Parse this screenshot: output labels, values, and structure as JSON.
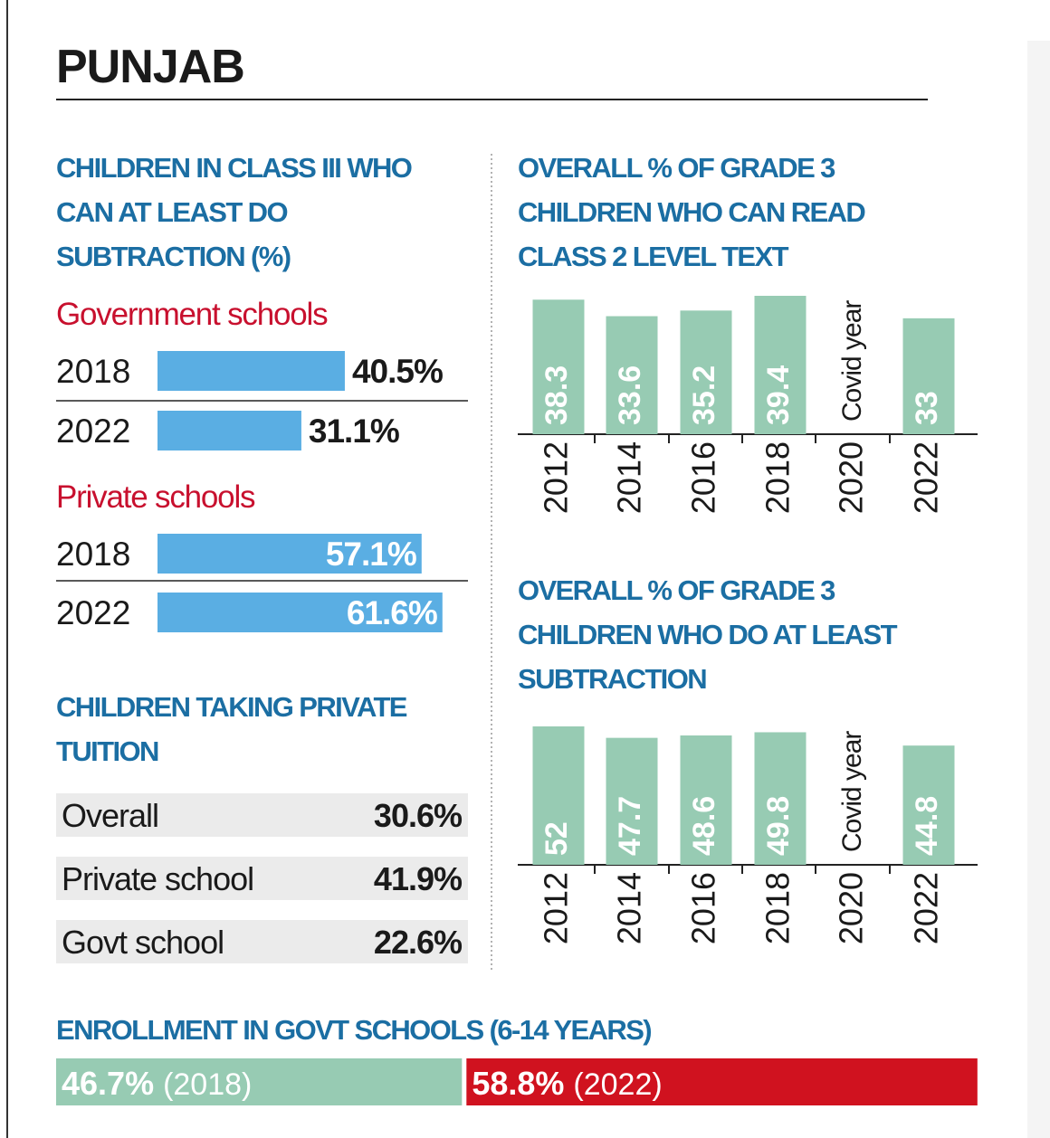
{
  "title": "PUNJAB",
  "chart_data": [
    {
      "type": "hbar",
      "title": "CHILDREN IN CLASS III WHO CAN AT LEAST DO SUBTRACTION (%)",
      "color": "#5aaee3",
      "series": [
        {
          "name": "Government schools",
          "categories": [
            "2018",
            "2022"
          ],
          "values": [
            40.5,
            31.1
          ],
          "value_labels": [
            "40.5%",
            "31.1%"
          ]
        },
        {
          "name": "Private schools",
          "categories": [
            "2018",
            "2022"
          ],
          "values": [
            57.1,
            61.6
          ],
          "value_labels": [
            "57.1%",
            "61.6%"
          ]
        }
      ]
    },
    {
      "type": "bar",
      "title": "OVERALL % OF GRADE 3 CHILDREN WHO CAN READ CLASS 2 LEVEL TEXT",
      "color": "#97cbb3",
      "categories": [
        "2012",
        "2014",
        "2016",
        "2018",
        "2020",
        "2022"
      ],
      "values": [
        38.3,
        33.6,
        35.2,
        39.4,
        null,
        33
      ],
      "annotations": [
        {
          "category": 4,
          "text": "Covid year"
        }
      ]
    },
    {
      "type": "bar",
      "title": "OVERALL % OF GRADE 3 CHILDREN WHO DO AT LEAST SUBTRACTION",
      "color": "#97cbb3",
      "categories": [
        "2012",
        "2014",
        "2016",
        "2018",
        "2020",
        "2022"
      ],
      "values": [
        52,
        47.7,
        48.6,
        49.8,
        null,
        44.8
      ],
      "annotations": [
        {
          "category": 4,
          "text": "Covid year"
        }
      ]
    },
    {
      "type": "split-bar",
      "title": "ENROLLMENT IN GOVT SCHOOLS (6-14 YEARS)",
      "categories": [
        "(2018)",
        "(2022)"
      ],
      "values": [
        46.7,
        58.8
      ],
      "value_labels": [
        "46.7%",
        "58.8%"
      ],
      "colors": [
        "#97cbb3",
        "#d0121f"
      ]
    }
  ],
  "tuition": {
    "title": "CHILDREN TAKING PRIVATE TUITION",
    "rows": [
      [
        "Overall",
        "30.6%"
      ],
      [
        "Private school",
        "41.9%"
      ],
      [
        "Govt school",
        "22.6%"
      ]
    ]
  }
}
